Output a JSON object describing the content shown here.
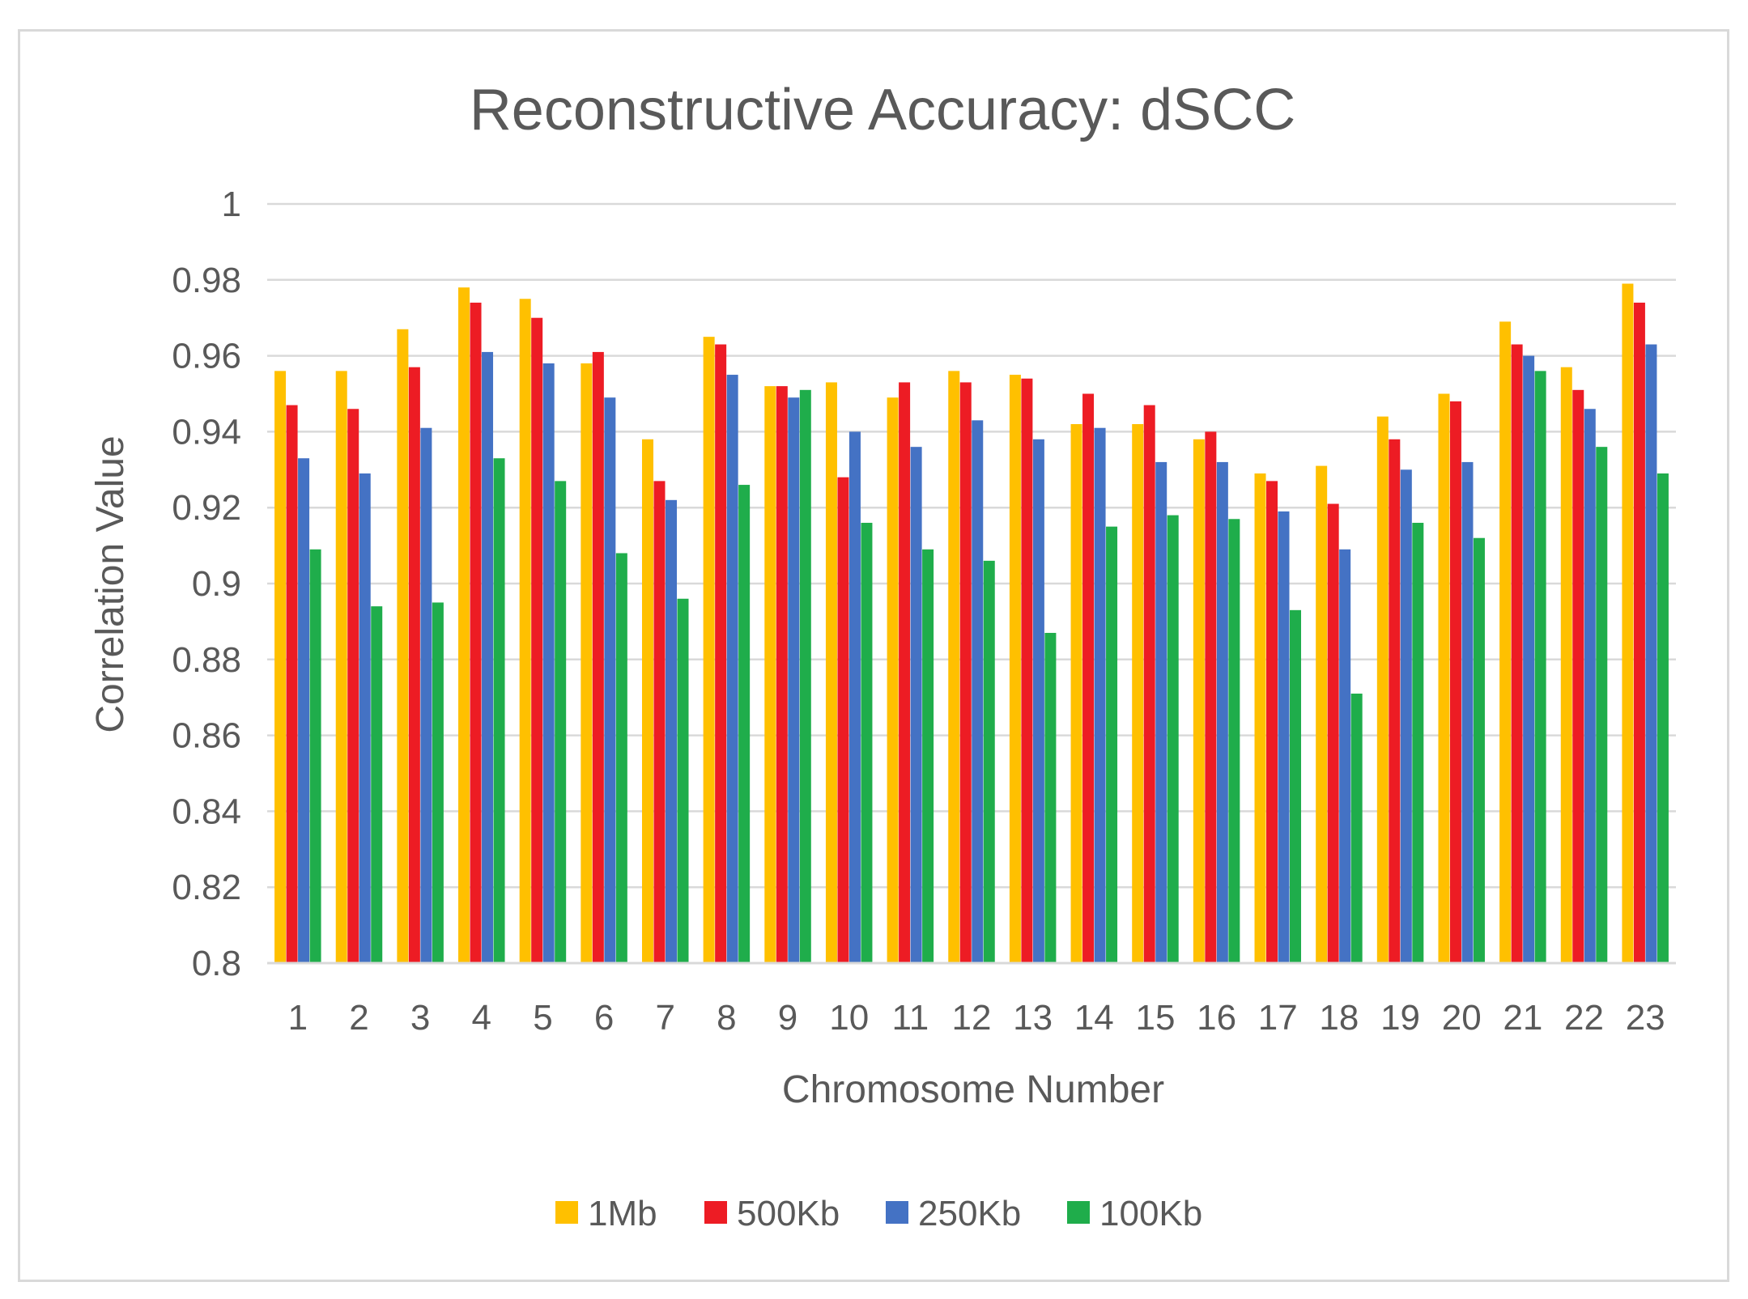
{
  "chart_data": {
    "type": "bar",
    "title": "Reconstructive Accuracy: dSCC",
    "xlabel": "Chromosome Number",
    "ylabel": "Correlation Value",
    "ylim": [
      0.8,
      1.0
    ],
    "yticks": [
      "0.8",
      "0.82",
      "0.84",
      "0.86",
      "0.88",
      "0.9",
      "0.92",
      "0.94",
      "0.96",
      "0.98",
      "1"
    ],
    "ytick_values": [
      0.8,
      0.82,
      0.84,
      0.86,
      0.88,
      0.9,
      0.92,
      0.94,
      0.96,
      0.98,
      1.0
    ],
    "grid": true,
    "legend_position": "bottom",
    "categories": [
      "1",
      "2",
      "3",
      "4",
      "5",
      "6",
      "7",
      "8",
      "9",
      "10",
      "11",
      "12",
      "13",
      "14",
      "15",
      "16",
      "17",
      "18",
      "19",
      "20",
      "21",
      "22",
      "23"
    ],
    "series": [
      {
        "name": "1Mb",
        "color": "#FFC000",
        "values": [
          0.956,
          0.956,
          0.967,
          0.978,
          0.975,
          0.958,
          0.938,
          0.965,
          0.952,
          0.953,
          0.949,
          0.956,
          0.955,
          0.942,
          0.942,
          0.938,
          0.929,
          0.931,
          0.944,
          0.95,
          0.969,
          0.957,
          0.979
        ]
      },
      {
        "name": "500Kb",
        "color": "#ED1C24",
        "values": [
          0.947,
          0.946,
          0.957,
          0.974,
          0.97,
          0.961,
          0.927,
          0.963,
          0.952,
          0.928,
          0.953,
          0.953,
          0.954,
          0.95,
          0.947,
          0.94,
          0.927,
          0.921,
          0.938,
          0.948,
          0.963,
          0.951,
          0.974
        ]
      },
      {
        "name": "250Kb",
        "color": "#4472C4",
        "values": [
          0.933,
          0.929,
          0.941,
          0.961,
          0.958,
          0.949,
          0.922,
          0.955,
          0.949,
          0.94,
          0.936,
          0.943,
          0.938,
          0.941,
          0.932,
          0.932,
          0.919,
          0.909,
          0.93,
          0.932,
          0.96,
          0.946,
          0.963
        ]
      },
      {
        "name": "100Kb",
        "color": "#1FAD4B",
        "values": [
          0.909,
          0.894,
          0.895,
          0.933,
          0.927,
          0.908,
          0.896,
          0.926,
          0.951,
          0.916,
          0.909,
          0.906,
          0.887,
          0.915,
          0.918,
          0.917,
          0.893,
          0.871,
          0.916,
          0.912,
          0.956,
          0.936,
          0.929
        ]
      }
    ]
  }
}
